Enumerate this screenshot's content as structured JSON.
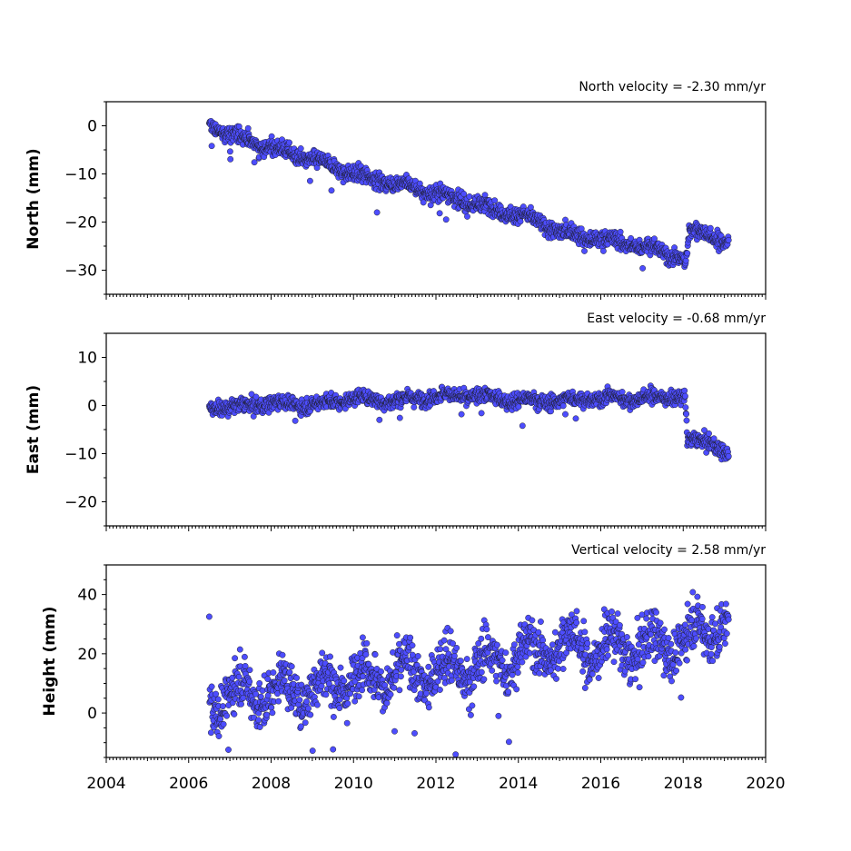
{
  "chart_data": {
    "type": "scatter",
    "x_ticks": [
      2004,
      2006,
      2008,
      2010,
      2012,
      2014,
      2016,
      2018,
      2020
    ],
    "xlim": [
      2004,
      2020
    ],
    "panels": [
      {
        "id": "north",
        "ylabel": "North (mm)",
        "velocity_label": "North velocity = -2.30 mm/yr",
        "ylim": [
          -35,
          5
        ],
        "y_ticks": [
          0,
          -10,
          -20,
          -30
        ],
        "y_tick_labels": [
          "0",
          "−10",
          "−20",
          "−30"
        ],
        "x_range_data": [
          2006.5,
          2019.1
        ],
        "trend": [
          [
            2006.5,
            0
          ],
          [
            2007.0,
            -1.8
          ],
          [
            2008.0,
            -4.5
          ],
          [
            2009.0,
            -7.0
          ],
          [
            2010.0,
            -10.0
          ],
          [
            2011.0,
            -12.0
          ],
          [
            2012.0,
            -14.0
          ],
          [
            2013.0,
            -16.5
          ],
          [
            2014.0,
            -18.5
          ],
          [
            2014.5,
            -20.0
          ],
          [
            2015.0,
            -22.0
          ],
          [
            2016.0,
            -23.5
          ],
          [
            2017.0,
            -25.0
          ],
          [
            2018.0,
            -27.5
          ],
          [
            2018.05,
            -29.5
          ],
          [
            2018.15,
            -22.0
          ],
          [
            2018.5,
            -22.0
          ],
          [
            2019.1,
            -24.5
          ]
        ],
        "scatter_sd": 1.1
      },
      {
        "id": "east",
        "ylabel": "East (mm)",
        "velocity_label": "East velocity = -0.68 mm/yr",
        "ylim": [
          -25,
          15
        ],
        "y_ticks": [
          10,
          0,
          -10,
          -20
        ],
        "y_tick_labels": [
          "10",
          "0",
          "−10",
          "−20"
        ],
        "x_range_data": [
          2006.5,
          2019.1
        ],
        "trend": [
          [
            2006.5,
            0
          ],
          [
            2007.0,
            -0.5
          ],
          [
            2008.0,
            0.5
          ],
          [
            2009.0,
            0.0
          ],
          [
            2010.0,
            1.5
          ],
          [
            2011.0,
            1.0
          ],
          [
            2012.0,
            2.0
          ],
          [
            2013.0,
            2.0
          ],
          [
            2014.0,
            1.0
          ],
          [
            2015.0,
            1.0
          ],
          [
            2016.0,
            1.5
          ],
          [
            2017.0,
            1.5
          ],
          [
            2018.0,
            2.0
          ],
          [
            2018.05,
            1.0
          ],
          [
            2018.1,
            -7.5
          ],
          [
            2018.7,
            -7.5
          ],
          [
            2019.1,
            -10.5
          ]
        ],
        "scatter_sd": 1.0
      },
      {
        "id": "height",
        "ylabel": "Height (mm)",
        "velocity_label": "Vertical velocity = 2.58 mm/yr",
        "ylim": [
          -15,
          50
        ],
        "y_ticks": [
          40,
          20,
          0
        ],
        "y_tick_labels": [
          "40",
          "20",
          "0"
        ],
        "x_range_data": [
          2006.5,
          2019.1
        ],
        "trend": [
          [
            2006.5,
            4
          ],
          [
            2007.0,
            6
          ],
          [
            2008.0,
            7
          ],
          [
            2009.0,
            8
          ],
          [
            2010.0,
            12
          ],
          [
            2011.0,
            13
          ],
          [
            2012.0,
            14
          ],
          [
            2013.0,
            16
          ],
          [
            2014.0,
            19
          ],
          [
            2015.0,
            23
          ],
          [
            2016.0,
            22
          ],
          [
            2017.0,
            22
          ],
          [
            2018.0,
            24
          ],
          [
            2019.0,
            31
          ],
          [
            2019.1,
            30
          ]
        ],
        "scatter_sd": 5.5
      }
    ]
  }
}
